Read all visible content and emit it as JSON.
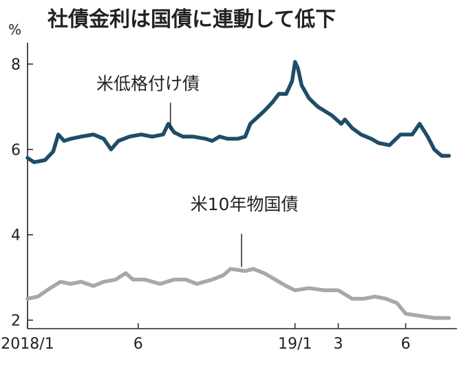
{
  "chart_data": {
    "type": "line",
    "title": "社債金利は国債に連動して低下",
    "ylabel": "%",
    "ylim": [
      1.8,
      8.5
    ],
    "yticks": [
      2,
      4,
      6,
      8
    ],
    "xlim": [
      "2018-01-01",
      "2019-08-10"
    ],
    "xticks": [
      {
        "date": "2018-01-01",
        "label": "2018/1"
      },
      {
        "date": "2018-06-01",
        "label": "6"
      },
      {
        "date": "2019-01-01",
        "label": "19/1"
      },
      {
        "date": "2019-03-01",
        "label": "3"
      },
      {
        "date": "2019-06-01",
        "label": "6"
      }
    ],
    "grid": false,
    "legend": "none",
    "series": [
      {
        "name": "米低格付け債",
        "color": "#1e4d68",
        "points": [
          [
            "2018-01-01",
            5.8
          ],
          [
            "2018-01-10",
            5.7
          ],
          [
            "2018-01-25",
            5.75
          ],
          [
            "2018-02-05",
            5.95
          ],
          [
            "2018-02-12",
            6.35
          ],
          [
            "2018-02-20",
            6.2
          ],
          [
            "2018-03-01",
            6.25
          ],
          [
            "2018-03-15",
            6.3
          ],
          [
            "2018-04-01",
            6.35
          ],
          [
            "2018-04-15",
            6.25
          ],
          [
            "2018-04-25",
            6.0
          ],
          [
            "2018-05-05",
            6.2
          ],
          [
            "2018-05-20",
            6.3
          ],
          [
            "2018-06-05",
            6.35
          ],
          [
            "2018-06-20",
            6.3
          ],
          [
            "2018-07-05",
            6.35
          ],
          [
            "2018-07-12",
            6.6
          ],
          [
            "2018-07-20",
            6.4
          ],
          [
            "2018-08-01",
            6.3
          ],
          [
            "2018-08-15",
            6.3
          ],
          [
            "2018-09-01",
            6.25
          ],
          [
            "2018-09-10",
            6.2
          ],
          [
            "2018-09-20",
            6.3
          ],
          [
            "2018-10-01",
            6.25
          ],
          [
            "2018-10-15",
            6.25
          ],
          [
            "2018-10-25",
            6.3
          ],
          [
            "2018-11-01",
            6.6
          ],
          [
            "2018-11-20",
            6.9
          ],
          [
            "2018-12-01",
            7.1
          ],
          [
            "2018-12-10",
            7.3
          ],
          [
            "2018-12-20",
            7.3
          ],
          [
            "2018-12-28",
            7.6
          ],
          [
            "2019-01-01",
            8.05
          ],
          [
            "2019-01-05",
            7.9
          ],
          [
            "2019-01-10",
            7.5
          ],
          [
            "2019-01-20",
            7.2
          ],
          [
            "2019-02-01",
            7.0
          ],
          [
            "2019-02-20",
            6.8
          ],
          [
            "2019-03-05",
            6.6
          ],
          [
            "2019-03-10",
            6.7
          ],
          [
            "2019-03-20",
            6.5
          ],
          [
            "2019-04-01",
            6.35
          ],
          [
            "2019-04-15",
            6.25
          ],
          [
            "2019-04-25",
            6.15
          ],
          [
            "2019-05-10",
            6.1
          ],
          [
            "2019-05-25",
            6.35
          ],
          [
            "2019-06-10",
            6.35
          ],
          [
            "2019-06-20",
            6.6
          ],
          [
            "2019-07-01",
            6.3
          ],
          [
            "2019-07-10",
            6.0
          ],
          [
            "2019-07-20",
            5.85
          ],
          [
            "2019-07-30",
            5.85
          ]
        ]
      },
      {
        "name": "米10年物国債",
        "color": "#a8a8ac",
        "points": [
          [
            "2018-01-01",
            2.5
          ],
          [
            "2018-01-15",
            2.55
          ],
          [
            "2018-02-01",
            2.75
          ],
          [
            "2018-02-15",
            2.9
          ],
          [
            "2018-03-01",
            2.85
          ],
          [
            "2018-03-15",
            2.9
          ],
          [
            "2018-04-01",
            2.8
          ],
          [
            "2018-04-15",
            2.9
          ],
          [
            "2018-05-01",
            2.95
          ],
          [
            "2018-05-15",
            3.1
          ],
          [
            "2018-05-25",
            2.95
          ],
          [
            "2018-06-10",
            2.95
          ],
          [
            "2018-07-01",
            2.85
          ],
          [
            "2018-07-20",
            2.95
          ],
          [
            "2018-08-05",
            2.95
          ],
          [
            "2018-08-20",
            2.85
          ],
          [
            "2018-09-10",
            2.95
          ],
          [
            "2018-09-25",
            3.05
          ],
          [
            "2018-10-05",
            3.2
          ],
          [
            "2018-10-25",
            3.15
          ],
          [
            "2018-11-05",
            3.2
          ],
          [
            "2018-11-20",
            3.1
          ],
          [
            "2018-12-05",
            2.95
          ],
          [
            "2018-12-20",
            2.8
          ],
          [
            "2019-01-01",
            2.7
          ],
          [
            "2019-01-20",
            2.75
          ],
          [
            "2019-02-10",
            2.7
          ],
          [
            "2019-03-01",
            2.7
          ],
          [
            "2019-03-20",
            2.5
          ],
          [
            "2019-04-05",
            2.5
          ],
          [
            "2019-04-20",
            2.55
          ],
          [
            "2019-05-05",
            2.5
          ],
          [
            "2019-05-20",
            2.4
          ],
          [
            "2019-06-01",
            2.15
          ],
          [
            "2019-06-20",
            2.1
          ],
          [
            "2019-07-10",
            2.05
          ],
          [
            "2019-07-30",
            2.05
          ]
        ]
      }
    ],
    "annotations": [
      {
        "text": "米低格付け債",
        "series": 0,
        "date": "2018-07-15",
        "value": 6.35
      },
      {
        "text": "米10年物国債",
        "series": 1,
        "date": "2018-10-20",
        "value": 3.15
      }
    ]
  }
}
